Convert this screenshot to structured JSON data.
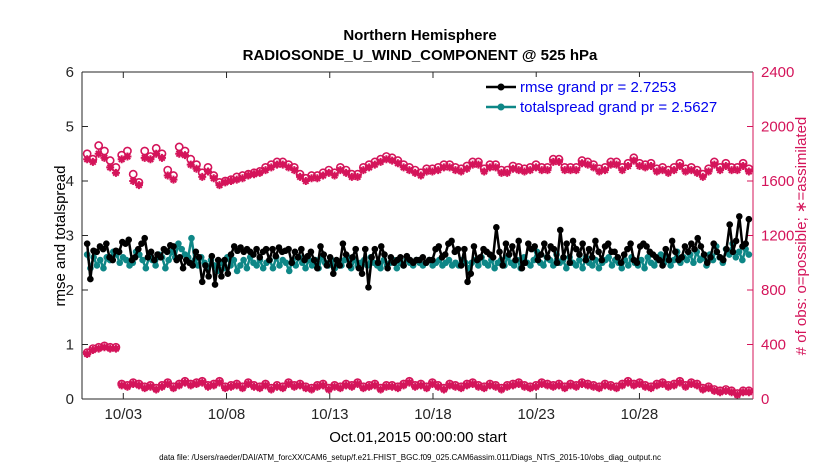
{
  "chart_data": {
    "type": "line",
    "title": "Northern Hemisphere",
    "subtitle": "RADIOSONDE_U_WIND_COMPONENT @ 525 hPa",
    "xlabel": "Oct.01,2015 00:00:00 start",
    "ylabel_left": "rmse and totalspread",
    "ylabel_right": "# of obs: o=possible; ∗=assimilated",
    "footer": "data file: /Users/raeder/DAI/ATM_forcXX/CAM6_setup/f.e21.FHIST_BGC.f09_025.CAM6assim.011/Diags_NTrS_2015-10/obs_diag_output.nc",
    "x_range": [
      1,
      33.5
    ],
    "x_ticks": [
      3,
      8,
      13,
      18,
      23,
      28
    ],
    "x_tick_labels": [
      "10/03",
      "10/08",
      "10/13",
      "10/18",
      "10/23",
      "10/28"
    ],
    "ylim_left": [
      0,
      6
    ],
    "y_ticks_left": [
      "0",
      "1",
      "2",
      "3",
      "4",
      "5",
      "6"
    ],
    "ylim_right": [
      0,
      2400
    ],
    "y_ticks_right": [
      "0",
      "400",
      "800",
      "1200",
      "1600",
      "2000",
      "2400"
    ],
    "x_start": 1.25,
    "x_step": 0.25,
    "series": [
      {
        "name": "rmse",
        "legend": "rmse grand pr = 2.7253",
        "color": "#000000",
        "axis": "left",
        "values": [
          2.85,
          2.2,
          2.72,
          2.7,
          2.8,
          2.75,
          2.85,
          2.6,
          2.55,
          2.72,
          2.7,
          2.88,
          2.85,
          2.92,
          2.55,
          2.6,
          2.75,
          2.85,
          2.95,
          2.6,
          2.7,
          2.55,
          2.65,
          2.6,
          2.75,
          2.7,
          2.82,
          2.8,
          2.55,
          2.6,
          2.4,
          2.55,
          2.5,
          2.45,
          2.7,
          2.6,
          2.15,
          2.45,
          2.25,
          2.62,
          2.1,
          2.55,
          2.25,
          2.55,
          2.3,
          2.65,
          2.8,
          2.72,
          2.78,
          2.7,
          2.75,
          2.7,
          2.65,
          2.75,
          2.6,
          2.7,
          2.75,
          2.55,
          2.75,
          2.62,
          2.78,
          2.7,
          2.72,
          2.75,
          2.5,
          2.7,
          2.6,
          2.75,
          2.55,
          2.62,
          2.7,
          2.55,
          2.4,
          2.8,
          2.65,
          2.45,
          2.6,
          2.3,
          2.55,
          2.45,
          2.85,
          2.65,
          2.45,
          2.6,
          2.75,
          2.4,
          2.3,
          2.75,
          2.05,
          2.6,
          2.75,
          2.5,
          2.8,
          2.65,
          2.4,
          2.6,
          2.5,
          2.55,
          2.6,
          2.45,
          2.62,
          2.55,
          2.5,
          2.55,
          2.55,
          2.6,
          2.5,
          2.55,
          2.55,
          2.75,
          2.8,
          2.6,
          2.65,
          2.85,
          2.9,
          2.7,
          2.75,
          2.45,
          2.75,
          2.15,
          2.3,
          2.8,
          2.55,
          2.6,
          2.75,
          2.7,
          2.65,
          2.6,
          3.15,
          2.7,
          2.45,
          2.85,
          2.65,
          2.8,
          2.55,
          2.9,
          2.4,
          2.5,
          2.85,
          2.75,
          2.8,
          2.55,
          2.65,
          2.85,
          2.6,
          2.8,
          2.75,
          2.5,
          3.1,
          2.6,
          2.85,
          2.5,
          2.9,
          2.75,
          2.65,
          2.85,
          2.55,
          2.75,
          2.6,
          2.9,
          2.7,
          2.55,
          2.8,
          2.85,
          2.7,
          2.7,
          2.6,
          2.5,
          2.65,
          2.75,
          2.85,
          2.55,
          2.5,
          2.8,
          2.85,
          2.8,
          2.7,
          2.65,
          2.6,
          2.55,
          2.45,
          2.75,
          2.55,
          2.9,
          2.7,
          2.55,
          2.6,
          2.8,
          2.7,
          2.85,
          2.75,
          2.95,
          2.8,
          2.65,
          2.5,
          2.6,
          2.85,
          2.7,
          2.6,
          2.55,
          2.75,
          3.2,
          2.7,
          2.9,
          3.35,
          2.8,
          2.85,
          3.3
        ]
      },
      {
        "name": "totalspread",
        "legend": "totalspread grand pr = 2.5627",
        "color": "#0e8787",
        "axis": "left",
        "values": [
          2.65,
          2.4,
          2.6,
          2.45,
          2.55,
          2.4,
          2.6,
          2.55,
          2.7,
          2.65,
          2.5,
          2.6,
          2.55,
          2.45,
          2.5,
          2.7,
          2.65,
          2.55,
          2.4,
          2.6,
          2.55,
          2.45,
          2.65,
          2.6,
          2.4,
          2.55,
          2.7,
          2.6,
          2.85,
          2.75,
          2.65,
          2.6,
          2.95,
          2.55,
          2.45,
          2.6,
          2.5,
          2.4,
          2.55,
          2.45,
          2.35,
          2.5,
          2.4,
          2.6,
          2.45,
          2.55,
          2.35,
          2.45,
          2.55,
          2.4,
          2.6,
          2.5,
          2.45,
          2.55,
          2.4,
          2.5,
          2.55,
          2.4,
          2.6,
          2.45,
          2.55,
          2.5,
          2.35,
          2.55,
          2.45,
          2.6,
          2.5,
          2.4,
          2.55,
          2.45,
          2.55,
          2.4,
          2.6,
          2.5,
          2.45,
          2.55,
          2.4,
          2.5,
          2.45,
          2.55,
          2.6,
          2.4,
          2.55,
          2.45,
          2.5,
          2.55,
          2.45,
          2.6,
          2.5,
          2.45,
          2.4,
          2.55,
          2.45,
          2.5,
          2.55,
          2.4,
          2.5,
          2.45,
          2.55,
          2.5,
          2.45,
          2.55,
          2.5,
          2.45,
          2.5,
          2.55,
          2.45,
          2.5,
          2.55,
          2.45,
          2.5,
          2.55,
          2.45,
          2.5,
          2.45,
          2.55,
          2.5,
          2.4,
          2.5,
          2.55,
          2.45,
          2.6,
          2.5,
          2.45,
          2.55,
          2.4,
          2.5,
          2.55,
          2.45,
          2.6,
          2.5,
          2.45,
          2.55,
          2.4,
          2.6,
          2.5,
          2.45,
          2.55,
          2.7,
          2.5,
          2.45,
          2.6,
          2.55,
          2.45,
          2.65,
          2.5,
          2.55,
          2.4,
          2.6,
          2.5,
          2.45,
          2.55,
          2.4,
          2.6,
          2.5,
          2.45,
          2.55,
          2.4,
          2.5,
          2.55,
          2.6,
          2.45,
          2.55,
          2.5,
          2.4,
          2.55,
          2.45,
          2.6,
          2.5,
          2.45,
          2.55,
          2.4,
          2.6,
          2.5,
          2.45,
          2.55,
          2.65,
          2.5,
          2.6,
          2.45,
          2.55,
          2.7,
          2.5,
          2.6,
          2.55,
          2.65,
          2.5,
          2.7,
          2.55,
          2.6,
          2.45,
          2.65,
          2.55,
          2.8,
          2.6,
          2.5,
          2.75,
          2.65,
          2.85,
          2.6,
          2.7,
          2.55,
          2.75,
          2.65
        ]
      },
      {
        "name": "possible_upper",
        "marker": "o",
        "color": "#d4145a",
        "axis": "right",
        "values": [
          1800,
          1760,
          1860,
          1820,
          1750,
          1700,
          1790,
          1820,
          1650,
          1590,
          1820,
          1780,
          1840,
          1800,
          1680,
          1640,
          1850,
          1820,
          1760,
          1720,
          1660,
          1700,
          1640,
          1590,
          1600,
          1610,
          1630,
          1640,
          1650,
          1660,
          1670,
          1700,
          1720,
          1740,
          1740,
          1720,
          1700,
          1650,
          1620,
          1640,
          1640,
          1660,
          1680,
          1660,
          1700,
          1680,
          1650,
          1650,
          1700,
          1720,
          1740,
          1760,
          1780,
          1770,
          1750,
          1720,
          1700,
          1680,
          1660,
          1690,
          1690,
          1700,
          1720,
          1720,
          1700,
          1690,
          1710,
          1740,
          1740,
          1690,
          1720,
          1720,
          1680,
          1680,
          1710,
          1700,
          1690,
          1700,
          1720,
          1700,
          1700,
          1760,
          1760,
          1700,
          1700,
          1700,
          1750,
          1740,
          1720,
          1690,
          1700,
          1740,
          1740,
          1700,
          1730,
          1770,
          1730,
          1720,
          1730,
          1690,
          1700,
          1680,
          1700,
          1730,
          1690,
          1700,
          1680,
          1650,
          1690,
          1740,
          1700,
          1730,
          1700,
          1700,
          1730,
          1690
        ]
      },
      {
        "name": "assimilated_upper",
        "marker": "*",
        "color": "#d4145a",
        "axis": "right",
        "values": [
          1760,
          1740,
          1800,
          1770,
          1700,
          1660,
          1760,
          1780,
          1600,
          1570,
          1770,
          1760,
          1800,
          1770,
          1640,
          1610,
          1800,
          1790,
          1720,
          1690,
          1630,
          1670,
          1620,
          1570,
          1590,
          1600,
          1610,
          1620,
          1640,
          1650,
          1660,
          1680,
          1700,
          1720,
          1720,
          1700,
          1680,
          1630,
          1600,
          1620,
          1620,
          1640,
          1660,
          1640,
          1680,
          1660,
          1630,
          1630,
          1680,
          1700,
          1720,
          1740,
          1760,
          1750,
          1730,
          1700,
          1680,
          1660,
          1640,
          1670,
          1670,
          1680,
          1700,
          1700,
          1680,
          1670,
          1690,
          1720,
          1720,
          1670,
          1700,
          1700,
          1660,
          1660,
          1690,
          1680,
          1670,
          1680,
          1700,
          1680,
          1680,
          1740,
          1740,
          1680,
          1680,
          1680,
          1730,
          1720,
          1700,
          1670,
          1680,
          1720,
          1720,
          1680,
          1710,
          1750,
          1710,
          1700,
          1710,
          1670,
          1680,
          1660,
          1680,
          1710,
          1670,
          1680,
          1660,
          1630,
          1670,
          1720,
          1680,
          1710,
          1680,
          1680,
          1710,
          1670
        ]
      },
      {
        "name": "possible_lower",
        "marker": "o",
        "color": "#d4145a",
        "axis": "right",
        "values": [
          340,
          370,
          380,
          390,
          380,
          380,
          110,
          100,
          120,
          110,
          90,
          100,
          80,
          100,
          120,
          90,
          110,
          130,
          110,
          120,
          130,
          100,
          110,
          130,
          90,
          100,
          110,
          90,
          120,
          100,
          90,
          110,
          80,
          100,
          90,
          120,
          100,
          110,
          90,
          80,
          100,
          110,
          80,
          100,
          90,
          110,
          100,
          120,
          90,
          100,
          110,
          80,
          100,
          100,
          90,
          110,
          130,
          100,
          110,
          90,
          120,
          100,
          80,
          110,
          100,
          90,
          110,
          120,
          100,
          90,
          110,
          100,
          80,
          100,
          110,
          120,
          100,
          90,
          100,
          120,
          110,
          100,
          110,
          90,
          110,
          100,
          120,
          110,
          100,
          90,
          110,
          100,
          90,
          110,
          130,
          110,
          120,
          100,
          90,
          110,
          120,
          100,
          110,
          130,
          100,
          120,
          110,
          80,
          90,
          70,
          60,
          70,
          60,
          40,
          60,
          60
        ]
      },
      {
        "name": "assimilated_lower",
        "marker": "*",
        "color": "#d4145a",
        "axis": "right",
        "values": [
          330,
          360,
          370,
          380,
          370,
          370,
          100,
          90,
          110,
          100,
          80,
          90,
          70,
          90,
          110,
          80,
          100,
          120,
          100,
          110,
          120,
          90,
          100,
          120,
          80,
          90,
          100,
          80,
          110,
          90,
          80,
          100,
          70,
          90,
          80,
          110,
          90,
          100,
          80,
          70,
          90,
          100,
          70,
          90,
          80,
          100,
          90,
          110,
          80,
          90,
          100,
          70,
          90,
          90,
          80,
          100,
          120,
          90,
          100,
          80,
          110,
          90,
          70,
          100,
          90,
          80,
          100,
          110,
          90,
          80,
          100,
          90,
          70,
          90,
          100,
          110,
          90,
          80,
          90,
          110,
          100,
          90,
          100,
          80,
          100,
          90,
          110,
          100,
          90,
          80,
          100,
          90,
          80,
          100,
          120,
          100,
          110,
          90,
          80,
          100,
          110,
          90,
          100,
          120,
          90,
          110,
          100,
          70,
          80,
          60,
          50,
          60,
          50,
          30,
          50,
          50
        ]
      }
    ]
  }
}
